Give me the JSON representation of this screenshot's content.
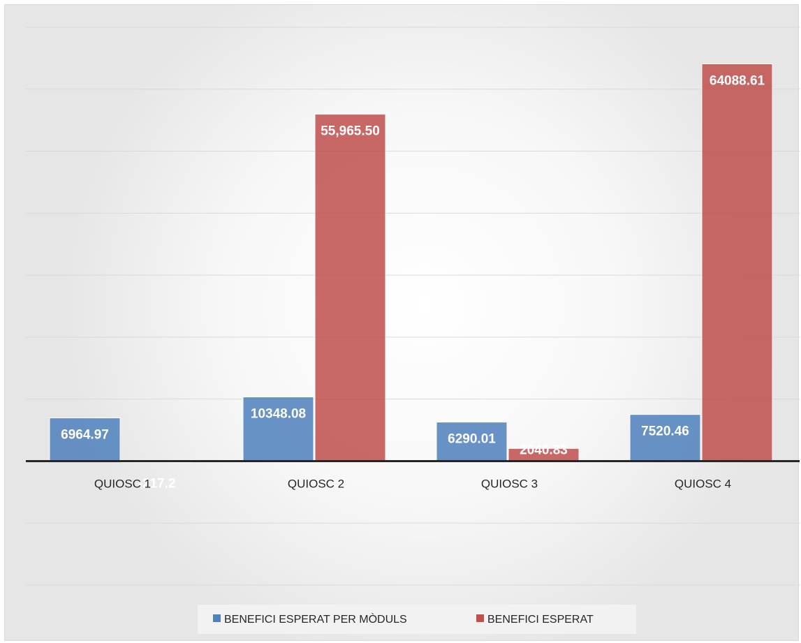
{
  "chart_data": {
    "type": "bar",
    "categories": [
      "QUIOSC 1",
      "QUIOSC 2",
      "QUIOSC 3",
      "QUIOSC 4"
    ],
    "series": [
      {
        "name": "BENEFICI ESPERAT PER MÒDULS",
        "color": "#4f81bd",
        "values": [
          6964.97,
          10348.08,
          6290.01,
          7520.46
        ],
        "labels": [
          "6964.97",
          "10348.08",
          "6290.01",
          "7520.46"
        ]
      },
      {
        "name": "BENEFICI ESPERAT",
        "color": "#c0504d",
        "values": [
          -217.2,
          55965.5,
          2040.83,
          64088.61
        ],
        "labels": [
          "-217.2",
          "55,965.50",
          "2040.83",
          "64088.61"
        ]
      }
    ],
    "ylim": [
      -20000,
      70000
    ],
    "grid": true,
    "legend_position": "bottom"
  }
}
